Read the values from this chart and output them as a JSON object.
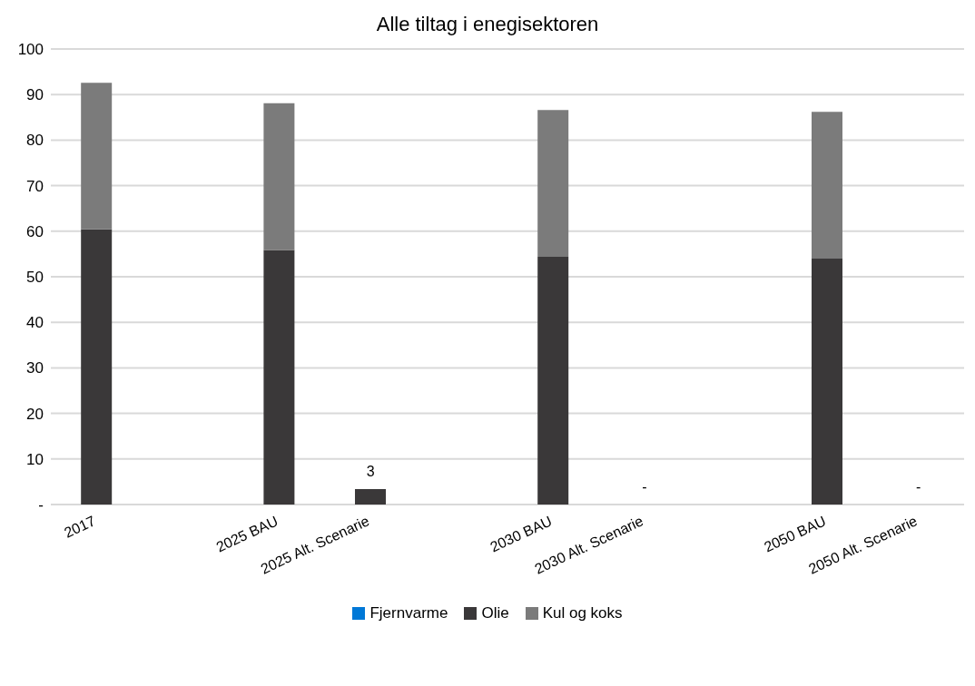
{
  "chart_data": {
    "type": "bar",
    "title": "Alle tiltag i enegisektoren",
    "stacked": true,
    "categories": [
      "2017",
      null,
      "2025 BAU",
      "2025 Alt. Scenarie",
      null,
      "2030 BAU",
      "2030 Alt. Scenarie",
      null,
      "2050 BAU",
      "2050 Alt. Scenarie"
    ],
    "series": [
      {
        "name": "Fjernvarme",
        "color": "#0078d7",
        "values": [
          0,
          null,
          0,
          0,
          null,
          0,
          0,
          null,
          0,
          0
        ]
      },
      {
        "name": "Olie",
        "color": "#3a3839",
        "values": [
          60.4,
          null,
          55.9,
          3.4,
          null,
          54.4,
          0,
          null,
          54.0,
          0
        ]
      },
      {
        "name": "Kul og koks",
        "color": "#7b7b7b",
        "values": [
          32.2,
          null,
          32.2,
          0,
          null,
          32.2,
          0,
          null,
          32.2,
          0
        ]
      }
    ],
    "totals": [
      null,
      null,
      null,
      "3",
      null,
      null,
      "-",
      null,
      null,
      "-"
    ],
    "ylim": [
      0,
      100
    ],
    "yticks": [
      {
        "value": 0,
        "label": "-"
      },
      10,
      20,
      30,
      40,
      50,
      60,
      70,
      80,
      90,
      100
    ],
    "grid": "y",
    "legend": "bottom"
  }
}
